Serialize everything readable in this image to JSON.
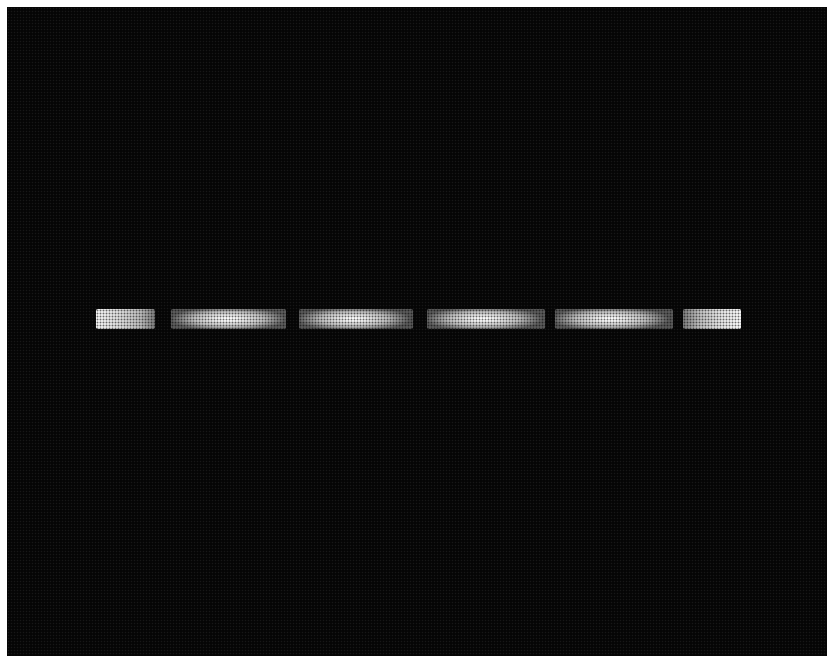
{
  "image": {
    "subject": "gel-electrophoresis",
    "colors": {
      "background": "#050505",
      "band_highlight": "#ffffff",
      "border": "#ffffff"
    },
    "lane_count": 6
  }
}
